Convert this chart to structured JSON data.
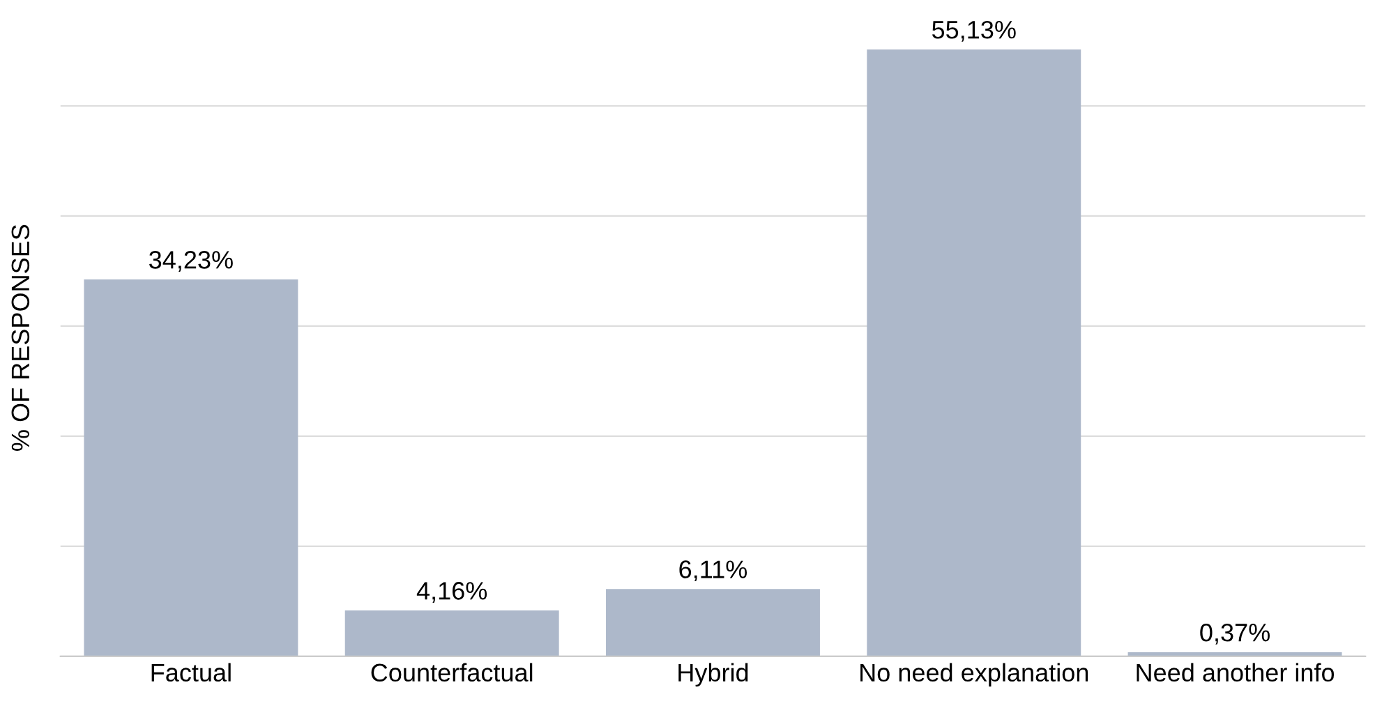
{
  "chart_data": {
    "type": "bar",
    "ylabel": "% OF RESPONSES",
    "categories": [
      "Factual",
      "Counterfactual",
      "Hybrid",
      "No need explanation",
      "Need another info"
    ],
    "values": [
      34.23,
      4.16,
      6.11,
      55.13,
      0.37
    ],
    "value_labels": [
      "34,23%",
      "4,16%",
      "6,11%",
      "55,13%",
      "0,37%"
    ],
    "color": "#adb8ca",
    "yticks": [
      {
        "value": 0,
        "label": null
      },
      {
        "value": 10,
        "label": null
      },
      {
        "value": 20,
        "label": null
      },
      {
        "value": 30,
        "label": null
      },
      {
        "value": 40,
        "label": null
      },
      {
        "value": 50,
        "label": null
      }
    ],
    "grid": "y"
  }
}
